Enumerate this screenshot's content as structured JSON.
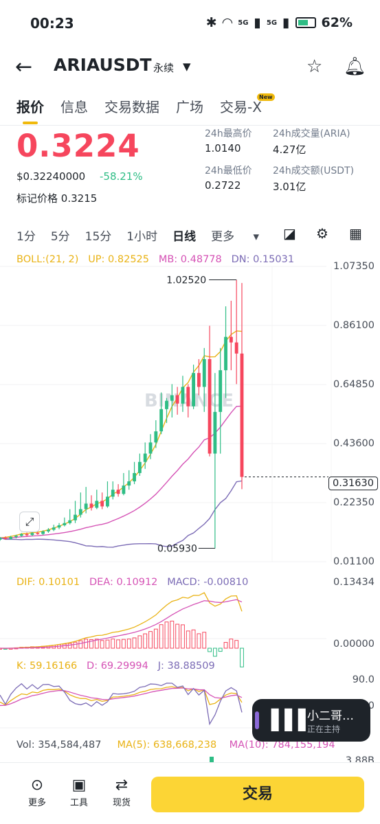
{
  "status": {
    "time": "00:23",
    "net1": "5G",
    "net2": "5G",
    "battery": "62%",
    "battery_level": 0.62
  },
  "header": {
    "symbol": "ARIAUSDT",
    "contract_type": "永续"
  },
  "tabs": [
    {
      "label": "报价",
      "active": true
    },
    {
      "label": "信息",
      "active": false
    },
    {
      "label": "交易数据",
      "active": false
    },
    {
      "label": "广场",
      "active": false
    },
    {
      "label": "交易-X",
      "active": false,
      "badge": "New"
    }
  ],
  "quote": {
    "price": "0.3224",
    "usd_price": "$0.32240000",
    "change_pct": "-58.21%",
    "mark_label": "标记价格",
    "mark_price": "0.3215",
    "stats": [
      {
        "label": "24h最高价",
        "value": "1.0140"
      },
      {
        "label": "24h成交量(ARIA)",
        "value": "4.27亿"
      },
      {
        "label": "24h最低价",
        "value": "0.2722"
      },
      {
        "label": "24h成交额(USDT)",
        "value": "3.01亿"
      }
    ]
  },
  "intervals": [
    "1分",
    "5分",
    "15分",
    "1小时",
    "日线",
    "更多"
  ],
  "active_interval": "日线",
  "indicators": {
    "boll": {
      "label": "BOLL:(21, 2)",
      "up": "UP: 0.82525",
      "mb": "MB: 0.48778",
      "dn": "DN: 0.15031"
    },
    "macd": {
      "dif": "DIF: 0.10101",
      "dea": "DEA: 0.10912",
      "macd": "MACD: -0.00810"
    },
    "kdj": {
      "k": "K: 59.16166",
      "d": "D: 69.29994",
      "j": "J: 38.88509"
    },
    "vol": {
      "vol": "Vol: 354,584,487",
      "ma5": "MA(5): 638,668,238",
      "ma10": "MA(10): 784,155,194"
    }
  },
  "price_axis": [
    "1.07350",
    "0.86100",
    "0.64850",
    "0.43600",
    "0.22350",
    "0.01100"
  ],
  "macd_axis": [
    "0.13434",
    "0.00000"
  ],
  "kdj_axis": [
    "90.0",
    "50.0"
  ],
  "vol_axis": "3.88B",
  "chart_labels": {
    "high_marker": "1.02520",
    "low_marker": "0.05930",
    "current_price": "0.31630",
    "watermark": "BINANCE"
  },
  "colors": {
    "up": "#2ebd85",
    "down": "#f6465d",
    "boll_up": "#e9b213",
    "boll_mb": "#d552b5",
    "boll_dn": "#7b6bb5",
    "accent": "#fcd535"
  },
  "candles": [
    [
      0.09,
      0.097,
      0.086,
      0.1
    ],
    [
      0.097,
      0.093,
      0.09,
      0.102
    ],
    [
      0.093,
      0.1,
      0.09,
      0.104
    ],
    [
      0.1,
      0.104,
      0.095,
      0.108
    ],
    [
      0.104,
      0.11,
      0.1,
      0.114
    ],
    [
      0.11,
      0.107,
      0.102,
      0.116
    ],
    [
      0.107,
      0.114,
      0.103,
      0.118
    ],
    [
      0.114,
      0.111,
      0.108,
      0.12
    ],
    [
      0.111,
      0.12,
      0.107,
      0.124
    ],
    [
      0.12,
      0.126,
      0.115,
      0.132
    ],
    [
      0.126,
      0.134,
      0.121,
      0.144
    ],
    [
      0.134,
      0.142,
      0.128,
      0.15
    ],
    [
      0.142,
      0.15,
      0.138,
      0.17
    ],
    [
      0.15,
      0.16,
      0.145,
      0.2
    ],
    [
      0.16,
      0.18,
      0.15,
      0.23
    ],
    [
      0.18,
      0.2,
      0.17,
      0.26
    ],
    [
      0.2,
      0.22,
      0.185,
      0.28
    ],
    [
      0.22,
      0.205,
      0.195,
      0.25
    ],
    [
      0.205,
      0.23,
      0.2,
      0.27
    ],
    [
      0.23,
      0.21,
      0.2,
      0.26
    ],
    [
      0.21,
      0.245,
      0.205,
      0.3
    ],
    [
      0.245,
      0.27,
      0.235,
      0.3
    ],
    [
      0.27,
      0.255,
      0.245,
      0.29
    ],
    [
      0.255,
      0.285,
      0.25,
      0.33
    ],
    [
      0.285,
      0.3,
      0.27,
      0.34
    ],
    [
      0.3,
      0.33,
      0.29,
      0.37
    ],
    [
      0.33,
      0.37,
      0.32,
      0.4
    ],
    [
      0.37,
      0.4,
      0.345,
      0.44
    ],
    [
      0.4,
      0.44,
      0.38,
      0.47
    ],
    [
      0.44,
      0.48,
      0.42,
      0.52
    ],
    [
      0.48,
      0.56,
      0.47,
      0.62
    ],
    [
      0.56,
      0.59,
      0.51,
      0.6
    ],
    [
      0.59,
      0.61,
      0.53,
      0.65
    ],
    [
      0.61,
      0.58,
      0.54,
      0.64
    ],
    [
      0.58,
      0.64,
      0.55,
      0.68
    ],
    [
      0.64,
      0.57,
      0.53,
      0.65
    ],
    [
      0.57,
      0.69,
      0.56,
      0.72
    ],
    [
      0.69,
      0.64,
      0.61,
      0.74
    ],
    [
      0.64,
      0.74,
      0.55,
      0.78
    ],
    [
      0.74,
      0.4,
      0.39,
      0.86
    ],
    [
      0.4,
      0.55,
      0.059,
      0.69
    ],
    [
      0.55,
      0.7,
      0.4,
      0.78
    ],
    [
      0.7,
      0.82,
      0.6,
      0.93
    ],
    [
      0.82,
      0.8,
      0.7,
      0.95
    ],
    [
      0.8,
      0.76,
      0.65,
      1.025
    ],
    [
      0.76,
      0.316,
      0.272,
      1.014
    ]
  ]
}
